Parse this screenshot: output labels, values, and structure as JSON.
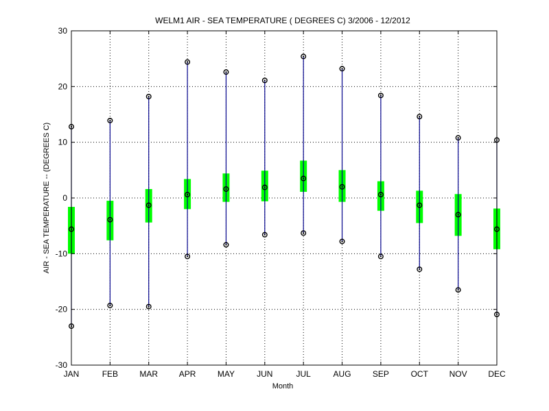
{
  "chart_data": {
    "type": "box",
    "title": "WELM1  AIR - SEA TEMPERATURE ( DEGREES C) 3/2006 - 12/2012",
    "xlabel": "Month",
    "ylabel": "AIR - SEA TEMPERATURE -- (DEGREES C)",
    "ylim": [
      -30,
      30
    ],
    "yticks": [
      -30,
      -20,
      -10,
      0,
      10,
      20,
      30
    ],
    "grid": true,
    "categories": [
      "JAN",
      "FEB",
      "MAR",
      "APR",
      "MAY",
      "JUN",
      "JUL",
      "AUG",
      "SEP",
      "OCT",
      "NOV",
      "DEC"
    ],
    "max": [
      12.8,
      13.9,
      18.2,
      24.4,
      22.6,
      21.1,
      25.4,
      23.2,
      18.4,
      14.6,
      10.8,
      10.4
    ],
    "q3": [
      -1.6,
      -0.5,
      1.6,
      3.4,
      4.4,
      4.9,
      6.7,
      5.0,
      3.0,
      1.3,
      0.7,
      -1.9
    ],
    "median": [
      -5.6,
      -3.9,
      -1.3,
      0.6,
      1.6,
      1.9,
      3.5,
      2.0,
      0.6,
      -1.3,
      -3.0,
      -5.6
    ],
    "q1": [
      -10.0,
      -7.6,
      -4.4,
      -2.0,
      -0.7,
      -0.6,
      1.1,
      -0.7,
      -2.3,
      -4.5,
      -6.8,
      -9.2
    ],
    "min": [
      -23.0,
      -19.3,
      -19.5,
      -10.5,
      -8.4,
      -6.6,
      -6.3,
      -7.8,
      -10.5,
      -12.8,
      -16.5,
      -20.9
    ],
    "colors": {
      "box": "#00ff00",
      "whisker": "#00008b",
      "marker": "#000000",
      "grid": "#000000"
    }
  }
}
